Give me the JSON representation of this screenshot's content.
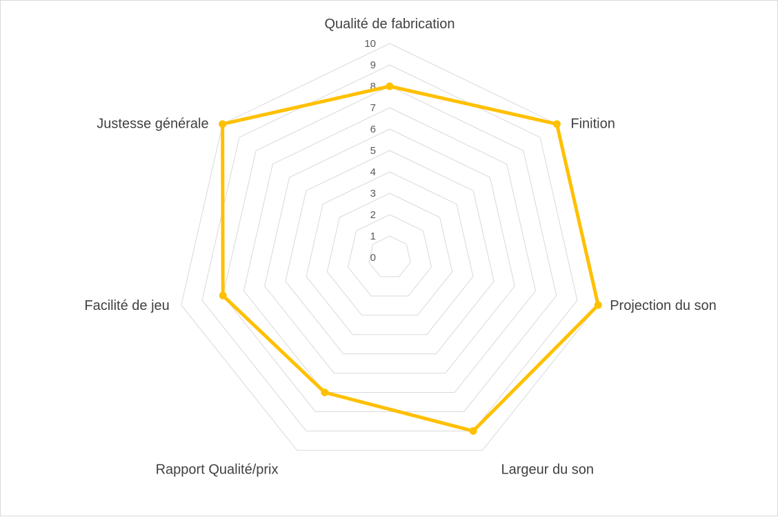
{
  "chart_data": {
    "type": "radar",
    "title": "",
    "categories": [
      "Qualité de fabrication",
      "Finition",
      "Projection du son",
      "Largeur du son",
      "Rapport Qualité/prix",
      "Facilité de jeu",
      "Justesse générale"
    ],
    "series": [
      {
        "values": [
          8,
          10,
          10,
          9,
          7,
          8,
          10
        ],
        "color": "#FFC000"
      }
    ],
    "axis": {
      "min": 0,
      "max": 10,
      "step": 1,
      "ticks": [
        "0",
        "1",
        "2",
        "3",
        "4",
        "5",
        "6",
        "7",
        "8",
        "9",
        "10"
      ]
    },
    "grid": true,
    "grid_color": "#D9D9D9",
    "legend": "none"
  }
}
